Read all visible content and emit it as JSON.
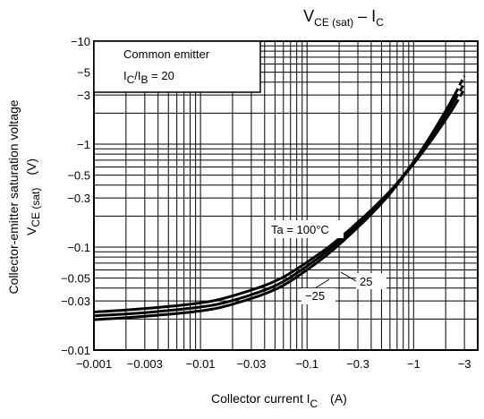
{
  "chart_data": {
    "type": "line",
    "title": "V",
    "title_sub1": "CE (sat)",
    "title_mid": " – I",
    "title_sub2": "C",
    "xlabel": "Collector current  I",
    "xlabel_sub": "C",
    "xlabel_unit": "(A)",
    "ylabel_line1": "Collector-emitter saturation voltage",
    "ylabel_v": "V",
    "ylabel_sub": "CE (sat)",
    "ylabel_unit": "(V)",
    "x_scale": "log",
    "y_scale": "log",
    "xlim": [
      -0.001,
      -4
    ],
    "ylim": [
      -0.01,
      -10
    ],
    "grid": true,
    "x_ticks": [
      {
        "value": -0.001,
        "label": "−0.001"
      },
      {
        "value": -0.003,
        "label": "−0.003"
      },
      {
        "value": -0.01,
        "label": "−0.01"
      },
      {
        "value": -0.03,
        "label": "−0.03"
      },
      {
        "value": -0.1,
        "label": "−0.1"
      },
      {
        "value": -0.3,
        "label": "−0.3"
      },
      {
        "value": -1,
        "label": "−1"
      },
      {
        "value": -3,
        "label": "−3"
      }
    ],
    "y_ticks": [
      {
        "value": -0.01,
        "label": "−0.01"
      },
      {
        "value": -0.03,
        "label": "−0.03"
      },
      {
        "value": -0.05,
        "label": "−0.05"
      },
      {
        "value": -0.1,
        "label": "−0.1"
      },
      {
        "value": -0.3,
        "label": "−0.3"
      },
      {
        "value": -0.5,
        "label": "−0.5"
      },
      {
        "value": -1,
        "label": "−1"
      },
      {
        "value": -3,
        "label": "−3"
      },
      {
        "value": -5,
        "label": "−5"
      },
      {
        "value": -10,
        "label": "−10"
      }
    ],
    "conditions": {
      "line1": "Common emitter",
      "ratio_main": "I",
      "ratio_sub1": "C",
      "ratio_slash": "/I",
      "ratio_sub2": "B",
      "ratio_value": " = 20"
    },
    "series": [
      {
        "name": "Ta = 100°C",
        "x": [
          -0.001,
          -0.003,
          -0.01,
          -0.02,
          -0.05,
          -0.1,
          -0.2,
          -0.5,
          -1,
          -2,
          -3
        ],
        "y": [
          -0.0234,
          -0.0253,
          -0.0287,
          -0.0336,
          -0.0466,
          -0.0714,
          -0.121,
          -0.287,
          -0.645,
          -1.73,
          -3.43
        ]
      },
      {
        "name": "25",
        "x": [
          -0.001,
          -0.003,
          -0.01,
          -0.02,
          -0.05,
          -0.1,
          -0.2,
          -0.5,
          -1,
          -2,
          -3
        ],
        "y": [
          -0.0215,
          -0.0231,
          -0.0262,
          -0.0303,
          -0.0421,
          -0.0655,
          -0.114,
          -0.28,
          -0.67,
          -1.92,
          -3.92
        ]
      },
      {
        "name": "−25",
        "x": [
          -0.001,
          -0.003,
          -0.01,
          -0.02,
          -0.05,
          -0.1,
          -0.2,
          -0.5,
          -1,
          -2,
          -3
        ],
        "y": [
          -0.0197,
          -0.0213,
          -0.024,
          -0.0279,
          -0.0387,
          -0.0602,
          -0.106,
          -0.266,
          -0.67,
          -2.1,
          -4.6
        ]
      }
    ]
  }
}
